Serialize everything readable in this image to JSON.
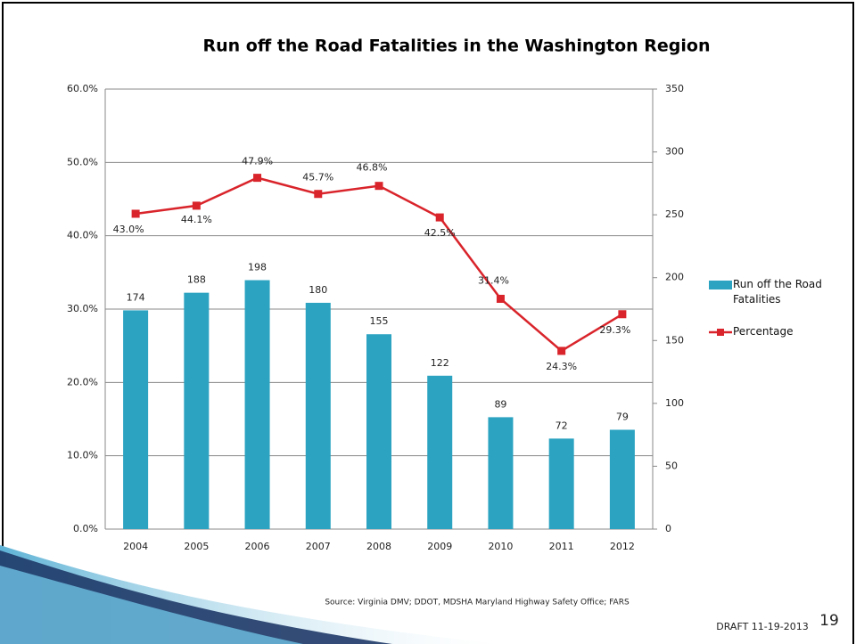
{
  "chart_data": {
    "type": "bar",
    "title": "Run off the Road Fatalities in the Washington Region",
    "categories": [
      "2004",
      "2005",
      "2006",
      "2007",
      "2008",
      "2009",
      "2010",
      "2011",
      "2012"
    ],
    "series": [
      {
        "name": "Run off the Road Fatalities",
        "type": "bar",
        "color": "#2ba3c1",
        "axis": "y2",
        "values": [
          174,
          188,
          198,
          180,
          155,
          122,
          89,
          72,
          79
        ]
      },
      {
        "name": "Percentage",
        "type": "line",
        "color": "#d9242b",
        "axis": "y",
        "values": [
          43.0,
          44.1,
          47.9,
          45.7,
          46.8,
          42.5,
          31.4,
          24.3,
          29.3
        ],
        "value_labels": [
          "43.0%",
          "44.1%",
          "47.9%",
          "45.7%",
          "46.8%",
          "42.5%",
          "31.4%",
          "24.3%",
          "29.3%"
        ]
      }
    ],
    "ylim": [
      0,
      60
    ],
    "yticks": [
      {
        "value": 0,
        "label": "0.0%"
      },
      {
        "value": 10,
        "label": "10.0%"
      },
      {
        "value": 20,
        "label": "20.0%"
      },
      {
        "value": 30,
        "label": "30.0%"
      },
      {
        "value": 40,
        "label": "40.0%"
      },
      {
        "value": 50,
        "label": "50.0%"
      },
      {
        "value": 60,
        "label": "60.0%"
      }
    ],
    "y2lim": [
      0,
      350
    ],
    "y2ticks": [
      0,
      50,
      100,
      150,
      200,
      250,
      300,
      350
    ],
    "grid": true,
    "legend": "right"
  },
  "footer": {
    "source": "Source: Virginia DMV; DDOT, MDSHA Maryland Highway Safety Office; FARS",
    "draft": "DRAFT 11-19-2013",
    "page_number": "19"
  }
}
